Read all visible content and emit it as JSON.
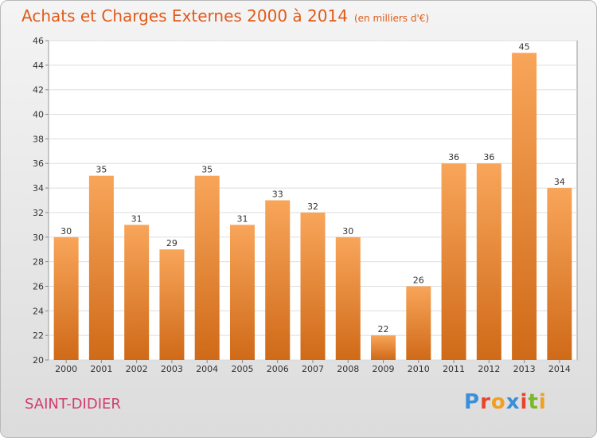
{
  "title": "Achats et Charges Externes 2000 à 2014",
  "unit_note": "(en milliers d'€)",
  "commune": "SAINT-DIDIER",
  "logo": "Proxiti",
  "colors": {
    "title": "#e05a1a",
    "commune": "#d23c6e",
    "bar_top": "#f8a55a",
    "bar_bottom": "#cf6a18"
  },
  "chart_data": {
    "type": "bar",
    "title": "Achats et Charges Externes 2000 à 2014",
    "subtitle": "(en milliers d'€)",
    "categories": [
      "2000",
      "2001",
      "2002",
      "2003",
      "2004",
      "2005",
      "2006",
      "2007",
      "2008",
      "2009",
      "2010",
      "2011",
      "2012",
      "2013",
      "2014"
    ],
    "values": [
      30,
      35,
      31,
      29,
      35,
      31,
      33,
      32,
      30,
      22,
      26,
      36,
      36,
      45,
      34
    ],
    "ylim": [
      20,
      46
    ],
    "yticks": [
      20,
      22,
      24,
      26,
      28,
      30,
      32,
      34,
      36,
      38,
      40,
      42,
      44,
      46
    ],
    "grid": true,
    "data_labels": true
  }
}
